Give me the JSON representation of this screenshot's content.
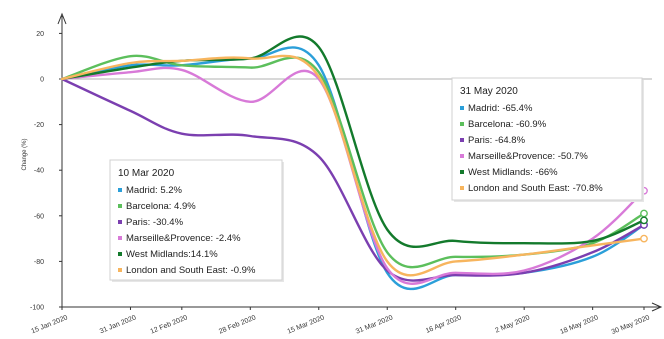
{
  "chart_data": {
    "type": "line",
    "ylabel": "Change (%)",
    "ylim": [
      -100,
      25
    ],
    "yticks": [
      20,
      0,
      -20,
      -40,
      -60,
      -80,
      -100
    ],
    "x_dates": [
      "2020-01-15",
      "2020-01-31",
      "2020-02-12",
      "2020-02-28",
      "2020-03-15",
      "2020-03-31",
      "2020-04-16",
      "2020-05-02",
      "2020-05-18",
      "2020-05-30"
    ],
    "x_tick_labels": [
      "15 Jan 2020",
      "31 Jan 2020",
      "12 Feb 2020",
      "28 Feb 2020",
      "15 Mar 2020",
      "31 Mar 2020",
      "16 Apr 2020",
      "2 May 2020",
      "18 May 2020",
      "30 May 2020"
    ],
    "grid": false,
    "series": [
      {
        "name": "Madrid",
        "color": "#2b9fd9",
        "values": [
          0,
          6,
          6,
          9,
          6,
          -85,
          -86,
          -85,
          -78,
          -64
        ]
      },
      {
        "name": "Barcelona",
        "color": "#5cbf5c",
        "values": [
          0,
          10,
          6,
          5,
          3,
          -76,
          -78,
          -77,
          -72,
          -59
        ]
      },
      {
        "name": "Paris",
        "color": "#7b3fb0",
        "values": [
          0,
          -14,
          -24,
          -25,
          -34,
          -84,
          -86,
          -85,
          -76,
          -64
        ]
      },
      {
        "name": "Marseille&Provence",
        "color": "#d87ad8",
        "values": [
          0,
          3,
          4,
          -10,
          0,
          -83,
          -85,
          -84,
          -70,
          -49
        ]
      },
      {
        "name": "West Midlands",
        "color": "#137a2c",
        "values": [
          0,
          5,
          8,
          9,
          14,
          -66,
          -71,
          -72,
          -71,
          -62
        ]
      },
      {
        "name": "London and South East",
        "color": "#f7b55e",
        "values": [
          0,
          7,
          8,
          9,
          1,
          -80,
          -80,
          -77,
          -73,
          -70
        ]
      }
    ],
    "tooltips": [
      {
        "title": "10 Mar 2020",
        "entries": [
          {
            "series": "Madrid",
            "text": "Madrid: 5.2%",
            "color": "#2b9fd9"
          },
          {
            "series": "Barcelona",
            "text": "Barcelona: 4.9%",
            "color": "#5cbf5c"
          },
          {
            "series": "Paris",
            "text": "Paris: -30.4%",
            "color": "#7b3fb0"
          },
          {
            "series": "Marseille&Provence",
            "text": "Marseille&Provence: -2.4%",
            "color": "#d87ad8"
          },
          {
            "series": "West Midlands",
            "text": "West Midlands:14.1%",
            "color": "#137a2c"
          },
          {
            "series": "London and South East",
            "text": "London and South East: -0.9%",
            "color": "#f7b55e"
          }
        ]
      },
      {
        "title": "31 May 2020",
        "entries": [
          {
            "series": "Madrid",
            "text": "Madrid: -65.4%",
            "color": "#2b9fd9"
          },
          {
            "series": "Barcelona",
            "text": "Barcelona: -60.9%",
            "color": "#5cbf5c"
          },
          {
            "series": "Paris",
            "text": "Paris: -64.8%",
            "color": "#7b3fb0"
          },
          {
            "series": "Marseille&Provence",
            "text": "Marseille&Provence: -50.7%",
            "color": "#d87ad8"
          },
          {
            "series": "West Midlands",
            "text": "West Midlands: -66%",
            "color": "#137a2c"
          },
          {
            "series": "London and South East",
            "text": "London and South East: -70.8%",
            "color": "#f7b55e"
          }
        ]
      }
    ]
  }
}
